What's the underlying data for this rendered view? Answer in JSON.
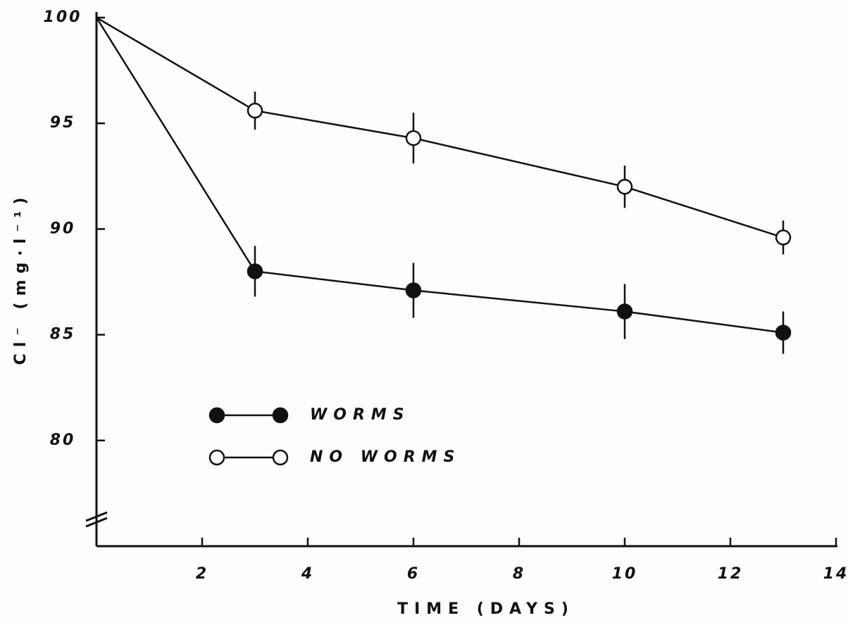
{
  "chart_data": {
    "type": "line",
    "x_label": "TIME (DAYS)",
    "y_label": "Cl⁻ (mg·l⁻¹)",
    "x": [
      0,
      3,
      6,
      10,
      13
    ],
    "series": [
      {
        "name": "WORMS",
        "color": "#111111",
        "marker": "filled",
        "values": [
          100,
          88.0,
          87.1,
          86.1,
          85.1
        ],
        "errors": [
          null,
          1.2,
          1.3,
          1.3,
          1.0
        ]
      },
      {
        "name": "NO WORMS",
        "color": "#111111",
        "marker": "open",
        "values": [
          100,
          95.6,
          94.3,
          92.0,
          89.6
        ],
        "errors": [
          null,
          0.9,
          1.2,
          1.0,
          0.8
        ]
      }
    ],
    "xlim": [
      0,
      14
    ],
    "xticks": [
      2,
      4,
      6,
      8,
      10,
      12,
      14
    ],
    "ylim": [
      75,
      100
    ],
    "yticks": [
      80,
      85,
      90,
      95,
      100
    ],
    "grid": false,
    "legend": "lower left"
  }
}
